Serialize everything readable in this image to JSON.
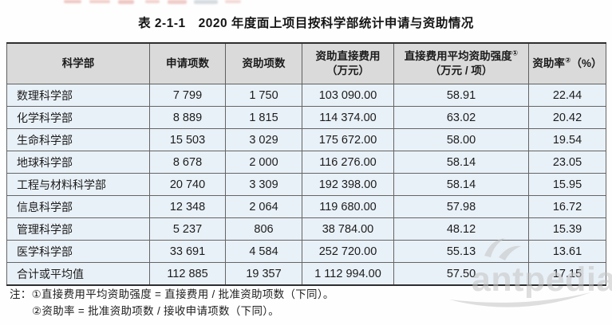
{
  "page": {
    "title": "表 2-1-1　2020 年度面上项目按科学部统计申请与资助情况"
  },
  "table": {
    "headers": [
      {
        "name": "science-department",
        "lines": [
          "科学部"
        ]
      },
      {
        "name": "applied-projects",
        "lines": [
          "申请项数"
        ]
      },
      {
        "name": "funded-projects",
        "lines": [
          "资助项数"
        ]
      },
      {
        "name": "funded-direct-cost",
        "lines": [
          "资助直接费用",
          "（万元）"
        ]
      },
      {
        "name": "average-funding-intensity",
        "lines": [
          "直接费用平均资助强度①",
          "（万元 / 项）"
        ]
      },
      {
        "name": "funding-rate",
        "lines": [
          "资助率②（%）"
        ]
      }
    ],
    "rows": [
      [
        "数理科学部",
        "7 799",
        "1 750",
        "103 090.00",
        "58.91",
        "22.44"
      ],
      [
        "化学科学部",
        "8 889",
        "1 815",
        "114 374.00",
        "63.02",
        "20.42"
      ],
      [
        "生命科学部",
        "15 503",
        "3 029",
        "175 672.00",
        "58.00",
        "19.54"
      ],
      [
        "地球科学部",
        "8 678",
        "2 000",
        "116 276.00",
        "58.14",
        "23.05"
      ],
      [
        "工程与材料科学部",
        "20 740",
        "3 309",
        "192 398.00",
        "58.14",
        "15.95"
      ],
      [
        "信息科学部",
        "12 348",
        "2 064",
        "119 680.00",
        "57.98",
        "16.72"
      ],
      [
        "管理科学部",
        "5 237",
        "806",
        "38 784.00",
        "48.12",
        "15.39"
      ],
      [
        "医学科学部",
        "33 691",
        "4 584",
        "252 720.00",
        "55.13",
        "13.61"
      ],
      [
        "合计或平均值",
        "112 885",
        "19 357",
        "1 112 994.00",
        "57.50",
        "17.15"
      ]
    ]
  },
  "footnotes": {
    "prefix": "注：",
    "items": [
      "①直接费用平均资助强度 = 直接费用 / 批准资助项数（下同）。",
      "②资助率 = 批准资助项数 / 接收申请项数（下同）。"
    ]
  },
  "watermark": {
    "text": "antpedia"
  },
  "colors": {
    "header_bg": "#dadada",
    "row_bg": "#e9f1f8",
    "border_dark": "#2e2e2e",
    "border_mid": "#5f5f5f",
    "watermark_gray": "#c4c4c4"
  }
}
